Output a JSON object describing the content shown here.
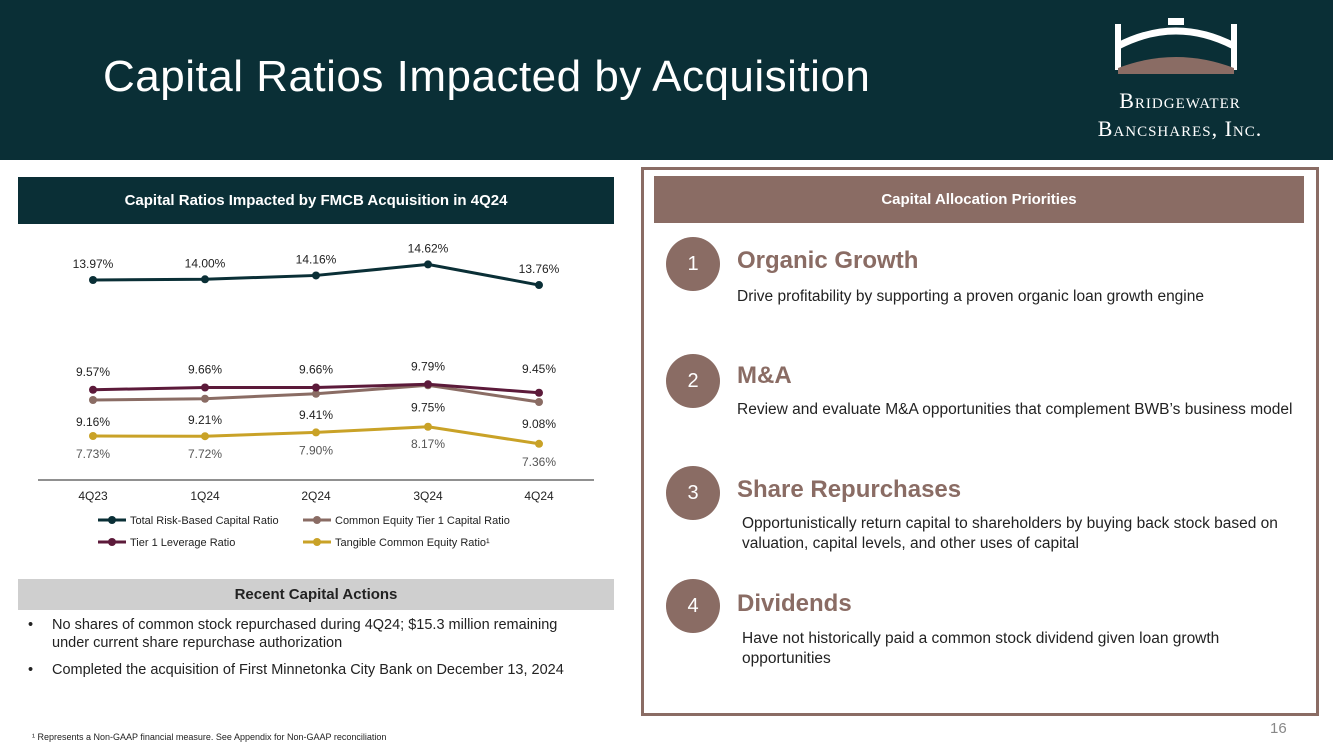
{
  "header": {
    "title": "Capital Ratios Impacted by Acquisition"
  },
  "logo": {
    "line1": "Bridgewater",
    "line2": "Bancshares, Inc."
  },
  "left_panel": {
    "heading": "Capital Ratios Impacted by FMCB Acquisition in 4Q24"
  },
  "chart_data": {
    "type": "line",
    "title": "Capital Ratios Impacted by FMCB Acquisition in 4Q24",
    "categories": [
      "4Q23",
      "1Q24",
      "2Q24",
      "3Q24",
      "4Q24"
    ],
    "series": [
      {
        "name": "Total Risk-Based Capital Ratio",
        "color": "#0a2f36",
        "values": [
          13.97,
          14.0,
          14.16,
          14.62,
          13.76
        ],
        "labels": [
          "13.97%",
          "14.00%",
          "14.16%",
          "14.62%",
          "13.76%"
        ]
      },
      {
        "name": "Common Equity Tier 1 Capital Ratio",
        "color": "#8a6c64",
        "values": [
          9.16,
          9.21,
          9.41,
          9.75,
          9.08
        ],
        "labels": [
          "9.16%",
          "9.21%",
          "9.41%",
          "9.75%",
          "9.08%"
        ]
      },
      {
        "name": "Tier 1 Leverage Ratio",
        "color": "#5c1a3a",
        "values": [
          9.57,
          9.66,
          9.66,
          9.79,
          9.45
        ],
        "labels": [
          "9.57%",
          "9.66%",
          "9.66%",
          "9.79%",
          "9.45%"
        ]
      },
      {
        "name": "Tangible Common Equity Ratio¹",
        "color": "#c9a227",
        "values": [
          7.73,
          7.72,
          7.9,
          8.17,
          7.36
        ],
        "labels": [
          "7.73%",
          "7.72%",
          "7.90%",
          "8.17%",
          "7.36%"
        ]
      }
    ],
    "legend_position": "bottom",
    "grid": false
  },
  "recent": {
    "heading": "Recent Capital Actions",
    "bullet_char": "•",
    "items": [
      "No shares of common stock repurchased during 4Q24; $15.3 million remaining under current share repurchase authorization",
      "Completed the acquisition of First Minnetonka City Bank on December 13, 2024"
    ]
  },
  "right_panel": {
    "heading": "Capital Allocation Priorities",
    "priorities": [
      {
        "num": "1",
        "title": "Organic Growth",
        "desc": "Drive profitability by supporting a proven organic loan growth engine"
      },
      {
        "num": "2",
        "title": "M&A",
        "desc": "Review and evaluate M&A opportunities that complement BWB’s business model"
      },
      {
        "num": "3",
        "title": "Share Repurchases",
        "desc": "Opportunistically return capital to shareholders by buying back stock based on valuation, capital levels, and other uses of capital"
      },
      {
        "num": "4",
        "title": "Dividends",
        "desc": "Have not historically paid a common stock dividend given loan growth opportunities"
      }
    ]
  },
  "footnote": "¹ Represents a Non-GAAP financial measure. See Appendix for Non-GAAP reconciliation",
  "page_number": "16"
}
